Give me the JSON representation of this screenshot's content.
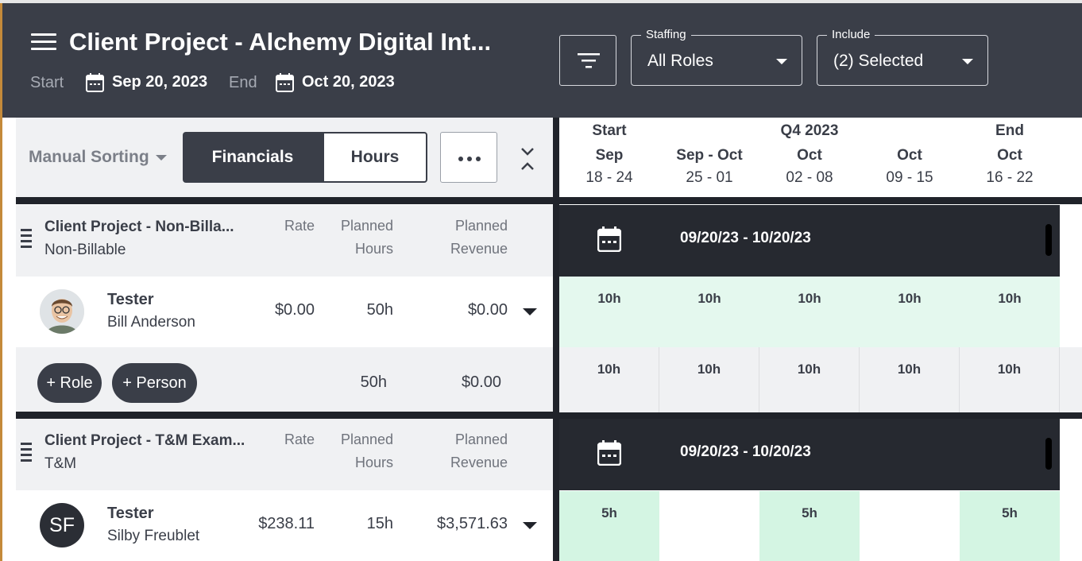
{
  "header": {
    "title": "Client Project - Alchemy Digital Int...",
    "start_label": "Start",
    "start_date": "Sep 20, 2023",
    "end_label": "End",
    "end_date": "Oct 20, 2023",
    "staffing": {
      "label": "Staffing",
      "value": "All Roles"
    },
    "include": {
      "label": "Include",
      "value": "(2) Selected"
    }
  },
  "toolbar": {
    "sort_label": "Manual Sorting",
    "financials_label": "Financials",
    "hours_label": "Hours",
    "active_view": "Financials"
  },
  "columns": {
    "rate": "Rate",
    "planned": "Planned",
    "hours": "Hours",
    "revenue": "Revenue"
  },
  "timeline": {
    "weeks": [
      {
        "top": "Start",
        "month": "Sep",
        "days": "18 - 24"
      },
      {
        "top": "",
        "month": "Sep - Oct",
        "days": "25 - 01"
      },
      {
        "top": "Q4 2023",
        "month": "Oct",
        "days": "02 - 08"
      },
      {
        "top": "",
        "month": "Oct",
        "days": "09 - 15"
      },
      {
        "top": "End",
        "month": "Oct",
        "days": "16 - 22"
      }
    ]
  },
  "projects": [
    {
      "name": "Client Project - Non-Billa...",
      "type": "Non-Billable",
      "date_range": "09/20/23 - 10/20/23",
      "person": {
        "role": "Tester",
        "name": "Bill Anderson",
        "rate": "$0.00",
        "hours": "50h",
        "revenue": "$0.00",
        "weekly": [
          "10h",
          "10h",
          "10h",
          "10h",
          "10h"
        ]
      },
      "summary": {
        "add_role": "+ Role",
        "add_person": "+ Person",
        "hours": "50h",
        "revenue": "$0.00",
        "weekly": [
          "10h",
          "10h",
          "10h",
          "10h",
          "10h"
        ]
      }
    },
    {
      "name": "Client Project - T&M Exam...",
      "type": "T&M",
      "date_range": "09/20/23 - 10/20/23",
      "person": {
        "role": "Tester",
        "name": "Silby Freublet",
        "initials": "SF",
        "rate": "$238.11",
        "hours": "15h",
        "revenue": "$3,571.63",
        "weekly": [
          "5h",
          "",
          "5h",
          "",
          "5h"
        ]
      }
    }
  ],
  "colors": {
    "header_bg": "#3a3e48",
    "band_bg": "#262930",
    "alloc_green": "#e4f8ee"
  }
}
